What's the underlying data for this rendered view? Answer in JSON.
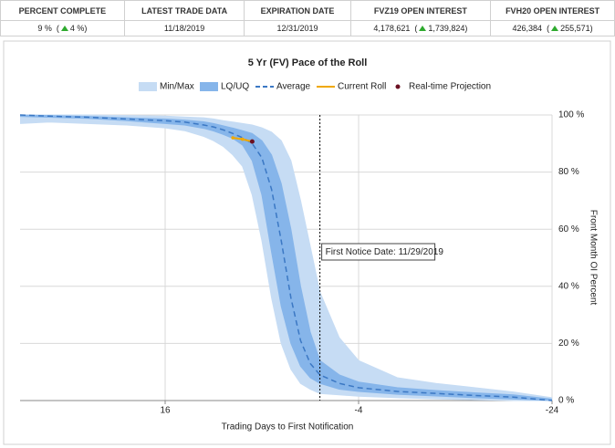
{
  "table": {
    "columns": [
      {
        "header": "PERCENT COMPLETE",
        "value": "9 %",
        "change": "4 %"
      },
      {
        "header": "LATEST TRADE DATA",
        "value": "11/18/2019"
      },
      {
        "header": "EXPIRATION DATE",
        "value": "12/31/2019"
      },
      {
        "header": "FVZ19 OPEN INTEREST",
        "value": "4,178,621",
        "change": "1,739,824"
      },
      {
        "header": "FVH20 OPEN INTEREST",
        "value": "426,384",
        "change": "255,571"
      }
    ]
  },
  "chart_data": {
    "type": "band-line",
    "title": "5 Yr (FV) Pace of the Roll",
    "x_label": "Trading Days to First Notification",
    "y_label": "Front Month OI Percent",
    "xlim": [
      31,
      -24
    ],
    "xticks": [
      16,
      -4,
      -24
    ],
    "ylim": [
      0,
      100
    ],
    "yticks": [
      {
        "value": 0,
        "label": "0 %"
      },
      {
        "value": 20,
        "label": "20 %"
      },
      {
        "value": 40,
        "label": "40 %"
      },
      {
        "value": 60,
        "label": "60 %"
      },
      {
        "value": 80,
        "label": "80 %"
      },
      {
        "value": 100,
        "label": "100 %"
      }
    ],
    "grid": true,
    "x": [
      31,
      28,
      24,
      20,
      16,
      14,
      12,
      11,
      10,
      9,
      8,
      7,
      6,
      5,
      4,
      3,
      2,
      1,
      0,
      -2,
      -4,
      -8,
      -12,
      -16,
      -20,
      -24
    ],
    "series": [
      {
        "name": "Min/Max",
        "kind": "band",
        "color": "#c6dcf4",
        "high": [
          100,
          100,
          100,
          99.8,
          99.6,
          99.3,
          99,
          98.6,
          98,
          97.5,
          97,
          96.5,
          95.5,
          94,
          91,
          84,
          70,
          54,
          38,
          22,
          14,
          8,
          6,
          4.5,
          3,
          1
        ],
        "low": [
          97,
          97.5,
          97,
          96.5,
          95.5,
          94.5,
          92.5,
          91,
          89,
          86,
          82,
          72,
          56,
          36,
          20,
          11,
          6,
          4,
          2.5,
          2,
          1.5,
          1,
          0.6,
          0.3,
          0,
          0
        ]
      },
      {
        "name": "LQ/UQ",
        "kind": "band",
        "color": "#86b5ea",
        "high": [
          100,
          99.8,
          99.5,
          99,
          98.6,
          98.2,
          97.6,
          97,
          96.2,
          95.4,
          94.5,
          93.5,
          91,
          86,
          76,
          60,
          40,
          24,
          14,
          9,
          6.5,
          4.5,
          3.5,
          2.7,
          2,
          0.5
        ],
        "low": [
          99.5,
          99.2,
          98.8,
          98,
          97,
          96.5,
          95.3,
          94.4,
          93.2,
          91.8,
          89.5,
          84,
          72,
          52,
          33,
          20,
          12,
          8,
          6,
          4,
          3.2,
          2.2,
          1.6,
          1,
          0.5,
          0
        ]
      },
      {
        "name": "Average",
        "kind": "dashed",
        "color": "#3b78c4",
        "values": [
          100,
          99.6,
          99.2,
          98.6,
          98,
          97.5,
          96.5,
          95.8,
          94.8,
          93.5,
          92,
          90,
          85,
          74,
          56,
          36,
          21,
          13,
          9,
          6,
          4.5,
          3.2,
          2.5,
          1.8,
          1.2,
          0
        ]
      },
      {
        "name": "Current Roll",
        "kind": "line",
        "color": "#f0a800",
        "x": [
          9,
          8,
          7
        ],
        "values": [
          92,
          91.5,
          90.7
        ]
      },
      {
        "name": "Real-time Projection",
        "kind": "point",
        "color": "#6b1022",
        "x": [
          7
        ],
        "values": [
          90.7
        ]
      }
    ],
    "annotations": [
      {
        "x": 0,
        "text": "First Notice Date: 11/29/2019"
      }
    ]
  }
}
